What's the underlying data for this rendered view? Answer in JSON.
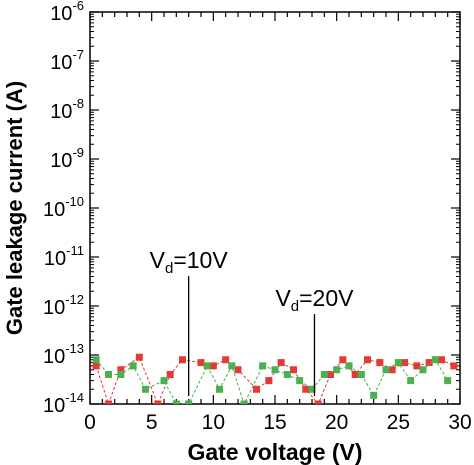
{
  "chart_data": {
    "type": "scatter",
    "xlabel": "Gate voltage (V)",
    "ylabel": "Gate leakage current (A)",
    "xlim": [
      0,
      30
    ],
    "ylim_log10": [
      -14,
      -6
    ],
    "yscale": "log",
    "grid": false,
    "x_ticks": [
      "0",
      "5",
      "10",
      "15",
      "20",
      "25",
      "30"
    ],
    "y_ticks": [
      {
        "base": "10",
        "exp": "-14"
      },
      {
        "base": "10",
        "exp": "-13"
      },
      {
        "base": "10",
        "exp": "-12"
      },
      {
        "base": "10",
        "exp": "-11"
      },
      {
        "base": "10",
        "exp": "-10"
      },
      {
        "base": "10",
        "exp": "-9"
      },
      {
        "base": "10",
        "exp": "-8"
      },
      {
        "base": "10",
        "exp": "-7"
      },
      {
        "base": "10",
        "exp": "-6"
      }
    ],
    "series": [
      {
        "color": "#e53935",
        "x": [
          0.5,
          1.5,
          2.5,
          4.0,
          5.5,
          6.5,
          7.5,
          9.0,
          10.0,
          11.0,
          12.0,
          13.5,
          14.5,
          15.5,
          16.5,
          17.5,
          18.5,
          19.5,
          20.5,
          21.5,
          22.5,
          23.5,
          24.5,
          25.5,
          26.5,
          27.5,
          28.5,
          29.5
        ],
        "y": [
          6e-14,
          1e-14,
          5e-14,
          9e-14,
          1e-14,
          4e-14,
          8e-14,
          7e-14,
          6e-14,
          8e-14,
          5e-14,
          2e-14,
          3e-14,
          7e-14,
          5e-14,
          2e-14,
          1e-14,
          4e-14,
          8e-14,
          4e-14,
          8e-14,
          7e-14,
          5e-14,
          7e-14,
          6e-14,
          7e-14,
          8e-14,
          6e-14
        ]
      },
      {
        "color": "#4caf50",
        "x": [
          0.5,
          1.5,
          2.5,
          3.5,
          4.5,
          6.0,
          7.0,
          8.0,
          9.5,
          10.5,
          11.5,
          12.5,
          14.0,
          15.0,
          16.0,
          17.0,
          18.0,
          19.0,
          20.0,
          21.0,
          22.0,
          23.0,
          24.0,
          25.0,
          26.0,
          27.0,
          28.0,
          29.0
        ],
        "y": [
          8e-14,
          4e-14,
          4e-14,
          6e-14,
          2e-14,
          3e-14,
          1e-14,
          1e-14,
          6e-14,
          2e-14,
          6e-14,
          1e-14,
          6e-14,
          5e-14,
          4e-14,
          3e-14,
          2e-14,
          4e-14,
          5e-14,
          6e-14,
          4e-14,
          1.5e-14,
          5e-14,
          7e-14,
          3e-14,
          5e-14,
          8e-14,
          3e-14
        ]
      }
    ],
    "annotations": [
      {
        "main": "V",
        "sub": "d",
        "rest": "=10V",
        "x": 8.0
      },
      {
        "main": "V",
        "sub": "d",
        "rest": "=20V",
        "x": 18.2
      }
    ]
  }
}
